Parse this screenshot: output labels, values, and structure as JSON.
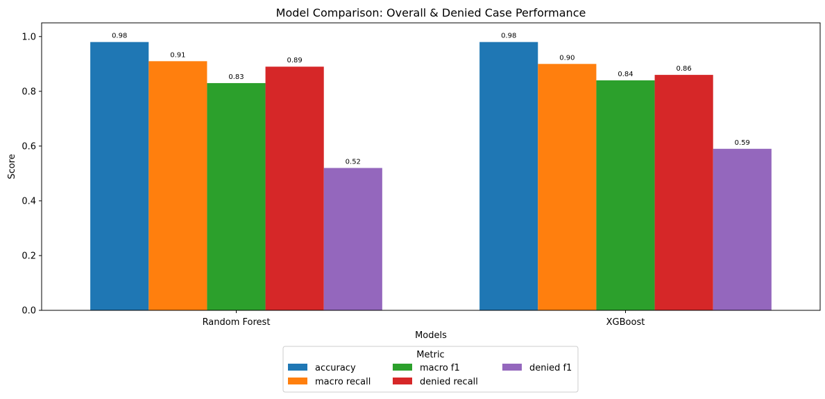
{
  "chart_data": {
    "type": "bar",
    "title": "Model Comparison: Overall & Denied Case Performance",
    "xlabel": "Models",
    "ylabel": "Score",
    "categories": [
      "Random Forest",
      "XGBoost"
    ],
    "ylim": [
      0,
      1.05
    ],
    "yticks": [
      0.0,
      0.2,
      0.4,
      0.6,
      0.8,
      1.0
    ],
    "ytick_labels": [
      "0.0",
      "0.2",
      "0.4",
      "0.6",
      "0.8",
      "1.0"
    ],
    "series": [
      {
        "name": "accuracy",
        "color": "#1f77b4",
        "values": [
          0.98,
          0.98
        ],
        "labels": [
          "0.98",
          "0.98"
        ]
      },
      {
        "name": "macro recall",
        "color": "#ff7f0e",
        "values": [
          0.91,
          0.9
        ],
        "labels": [
          "0.91",
          "0.90"
        ]
      },
      {
        "name": "macro f1",
        "color": "#2ca02c",
        "values": [
          0.83,
          0.84
        ],
        "labels": [
          "0.83",
          "0.84"
        ]
      },
      {
        "name": "denied recall",
        "color": "#d62728",
        "values": [
          0.89,
          0.86
        ],
        "labels": [
          "0.89",
          "0.86"
        ]
      },
      {
        "name": "denied f1",
        "color": "#9467bd",
        "values": [
          0.52,
          0.59
        ],
        "labels": [
          "0.52",
          "0.59"
        ]
      }
    ],
    "legend": {
      "title": "Metric",
      "placement": "bottom-center",
      "columns": 3
    },
    "grid": false
  }
}
